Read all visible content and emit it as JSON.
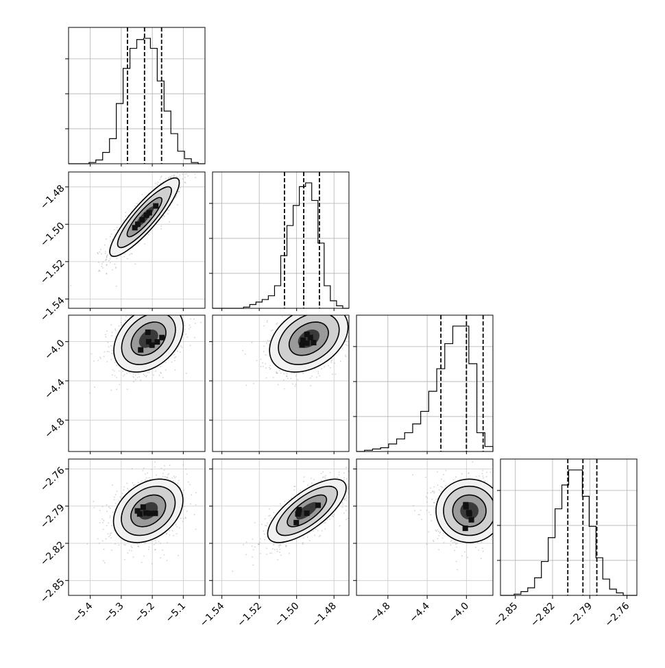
{
  "chart_data": {
    "type": "corner",
    "grid": true,
    "parameters": [
      {
        "range": [
          -5.47,
          -5.03
        ],
        "ticks": [
          -5.4,
          -5.3,
          -5.2,
          -5.1
        ],
        "tick_labels": [
          "−5.4",
          "−5.3",
          "−5.2",
          "−5.1"
        ],
        "quantiles": [
          -5.28,
          -5.225,
          -5.17
        ],
        "hist_bins": [
          0,
          0,
          0,
          0.01,
          0.03,
          0.09,
          0.2,
          0.48,
          0.76,
          0.92,
          0.99,
          1.0,
          0.92,
          0.66,
          0.42,
          0.24,
          0.1,
          0.04,
          0.01,
          0
        ]
      },
      {
        "range": [
          -1.545,
          -1.472
        ],
        "ticks": [
          -1.54,
          -1.52,
          -1.5,
          -1.48
        ],
        "tick_labels": [
          "−1.54",
          "−1.52",
          "−1.50",
          "−1.48"
        ],
        "quantiles": [
          -1.5065,
          -1.4962,
          -1.4878
        ],
        "hist_bins": [
          0,
          0,
          0,
          0,
          0,
          0.01,
          0.03,
          0.05,
          0.07,
          0.1,
          0.18,
          0.42,
          0.66,
          0.82,
          0.97,
          1.0,
          0.86,
          0.52,
          0.18,
          0.06,
          0.02,
          0
        ]
      },
      {
        "range": [
          -5.12,
          -3.73
        ],
        "ticks": [
          -4.8,
          -4.4,
          -4.0
        ],
        "tick_labels": [
          "−4.8",
          "−4.4",
          "−4.0"
        ],
        "quantiles": [
          -4.26,
          -4.0,
          -3.83
        ],
        "hist_bins": [
          0,
          0.01,
          0.02,
          0.03,
          0.06,
          0.1,
          0.15,
          0.22,
          0.32,
          0.48,
          0.66,
          0.86,
          1.0,
          1.0,
          0.7,
          0.15,
          0.04
        ]
      },
      {
        "range": [
          -2.862,
          -2.752
        ],
        "ticks": [
          -2.85,
          -2.82,
          -2.79,
          -2.76
        ],
        "tick_labels": [
          "−2.85",
          "−2.82",
          "−2.79",
          "−2.76"
        ],
        "quantiles": [
          -2.8077,
          -2.7955,
          -2.7843
        ],
        "hist_bins": [
          0,
          0,
          0.01,
          0.03,
          0.06,
          0.14,
          0.27,
          0.46,
          0.69,
          0.88,
          1.0,
          1.0,
          0.79,
          0.55,
          0.3,
          0.13,
          0.05,
          0.02,
          0,
          0
        ]
      }
    ],
    "pairs": [
      {
        "row": 1,
        "col": 0,
        "mean": [
          -5.225,
          -1.4962
        ],
        "sd": [
          0.056,
          0.0105
        ],
        "corr": 0.88
      },
      {
        "row": 2,
        "col": 0,
        "mean": [
          -5.212,
          -3.97
        ],
        "sd": [
          0.056,
          0.17
        ],
        "corr": 0.35
      },
      {
        "row": 2,
        "col": 1,
        "mean": [
          -1.4935,
          -3.97
        ],
        "sd": [
          0.0105,
          0.17
        ],
        "corr": 0.35
      },
      {
        "row": 3,
        "col": 0,
        "mean": [
          -5.213,
          -2.7938
        ],
        "sd": [
          0.056,
          0.0128
        ],
        "corr": 0.33
      },
      {
        "row": 3,
        "col": 1,
        "mean": [
          -1.4945,
          -2.7938
        ],
        "sd": [
          0.0105,
          0.0128
        ],
        "corr": 0.72
      },
      {
        "row": 3,
        "col": 2,
        "mean": [
          -3.97,
          -2.7938
        ],
        "sd": [
          0.17,
          0.0128
        ],
        "corr": 0.0
      }
    ]
  }
}
